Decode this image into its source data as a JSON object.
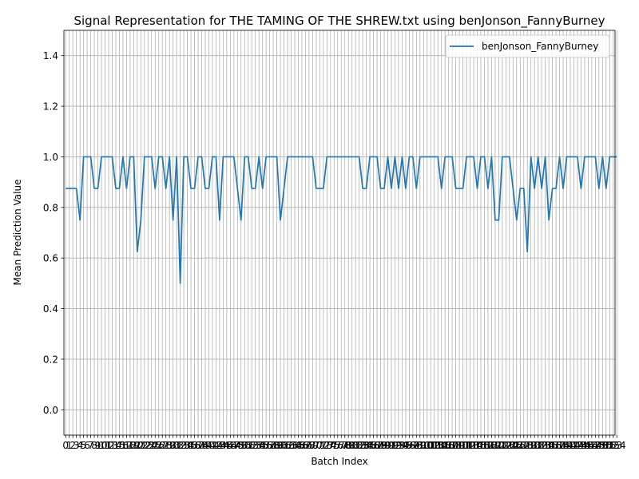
{
  "chart_data": {
    "type": "line",
    "title": "Signal Representation for THE TAMING OF THE SHREW.txt using benJonson_FannyBurney",
    "xlabel": "Batch Index",
    "ylabel": "Mean Prediction Value",
    "ylim": [
      -0.1,
      1.5
    ],
    "xlim": [
      -0.5,
      153.5
    ],
    "yticks": [
      0.0,
      0.2,
      0.4,
      0.6,
      0.8,
      1.0,
      1.2,
      1.4
    ],
    "grid": true,
    "legend_position": "upper-right",
    "series": [
      {
        "name": "benJonson_FannyBurney",
        "color": "#1f77b4",
        "values": [
          0.875,
          0.875,
          0.875,
          0.875,
          0.75,
          1.0,
          1.0,
          1.0,
          0.875,
          0.875,
          1.0,
          1.0,
          1.0,
          1.0,
          0.875,
          0.875,
          1.0,
          0.875,
          1.0,
          1.0,
          0.625,
          0.75,
          1.0,
          1.0,
          1.0,
          0.875,
          1.0,
          1.0,
          0.875,
          1.0,
          0.75,
          1.0,
          0.5,
          1.0,
          1.0,
          0.875,
          0.875,
          1.0,
          1.0,
          0.875,
          0.875,
          1.0,
          1.0,
          0.75,
          1.0,
          1.0,
          1.0,
          1.0,
          0.875,
          0.75,
          1.0,
          1.0,
          0.875,
          0.875,
          1.0,
          0.875,
          1.0,
          1.0,
          1.0,
          1.0,
          0.75,
          0.875,
          1.0,
          1.0,
          1.0,
          1.0,
          1.0,
          1.0,
          1.0,
          1.0,
          0.875,
          0.875,
          0.875,
          1.0,
          1.0,
          1.0,
          1.0,
          1.0,
          1.0,
          1.0,
          1.0,
          1.0,
          1.0,
          0.875,
          0.875,
          1.0,
          1.0,
          1.0,
          0.875,
          0.875,
          1.0,
          0.875,
          1.0,
          0.875,
          1.0,
          0.875,
          1.0,
          1.0,
          0.875,
          1.0,
          1.0,
          1.0,
          1.0,
          1.0,
          1.0,
          0.875,
          1.0,
          1.0,
          1.0,
          0.875,
          0.875,
          0.875,
          1.0,
          1.0,
          1.0,
          0.875,
          1.0,
          1.0,
          0.875,
          1.0,
          0.75,
          0.75,
          1.0,
          1.0,
          1.0,
          0.875,
          0.75,
          0.875,
          0.875,
          0.625,
          1.0,
          0.875,
          1.0,
          0.875,
          1.0,
          0.75,
          0.875,
          0.875,
          1.0,
          0.875,
          1.0,
          1.0,
          1.0,
          1.0,
          0.875,
          1.0,
          1.0,
          1.0,
          1.0,
          0.875,
          1.0,
          0.875,
          1.0,
          1.0,
          1.0
        ]
      }
    ]
  }
}
